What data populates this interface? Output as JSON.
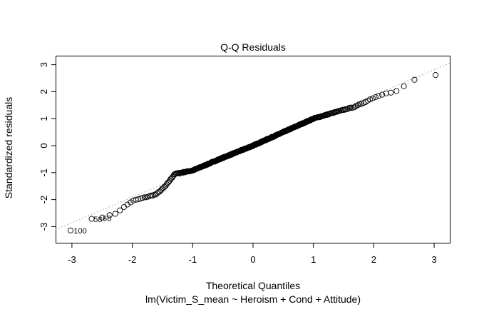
{
  "chart_data": {
    "type": "scatter",
    "title": "Q-Q Residuals",
    "xlabel": "Theoretical Quantiles",
    "ylabel": "Standardized residuals",
    "subtitle": "lm(Victim_S_mean ~ Heroism + Cond + Attitude)",
    "xlim": [
      -3.27,
      3.27
    ],
    "ylim": [
      -3.35,
      3.35
    ],
    "xticks": [
      -3,
      -2,
      -1,
      0,
      1,
      2,
      3
    ],
    "yticks": [
      -3,
      -2,
      -1,
      0,
      1,
      2,
      3
    ],
    "n_points": 400,
    "quantile_curve": [
      [
        -3.03,
        -3.15
      ],
      [
        -2.7,
        -2.72
      ],
      [
        -2.5,
        -2.65
      ],
      [
        -2.3,
        -2.55
      ],
      [
        -2.0,
        -2.05
      ],
      [
        -1.6,
        -1.8
      ],
      [
        -1.45,
        -1.5
      ],
      [
        -1.3,
        -1.05
      ],
      [
        -1.0,
        -0.92
      ],
      [
        -0.5,
        -0.45
      ],
      [
        0,
        0
      ],
      [
        0.5,
        0.5
      ],
      [
        1.0,
        1.0
      ],
      [
        1.3,
        1.2
      ],
      [
        1.7,
        1.45
      ],
      [
        2.0,
        1.78
      ],
      [
        2.2,
        1.95
      ],
      [
        2.35,
        2.0
      ],
      [
        2.5,
        2.2
      ],
      [
        2.68,
        2.45
      ],
      [
        3.03,
        2.62
      ]
    ],
    "reference_line": {
      "intercept": -0.02,
      "slope": 0.945,
      "style": "dotted",
      "color": "#999999"
    },
    "labeled_points": [
      {
        "label": "100",
        "x": -3.03,
        "y": -3.15
      },
      {
        "label": "58",
        "x": -2.7,
        "y": -2.72
      },
      {
        "label": "68",
        "x": -2.55,
        "y": -2.68
      }
    ]
  }
}
